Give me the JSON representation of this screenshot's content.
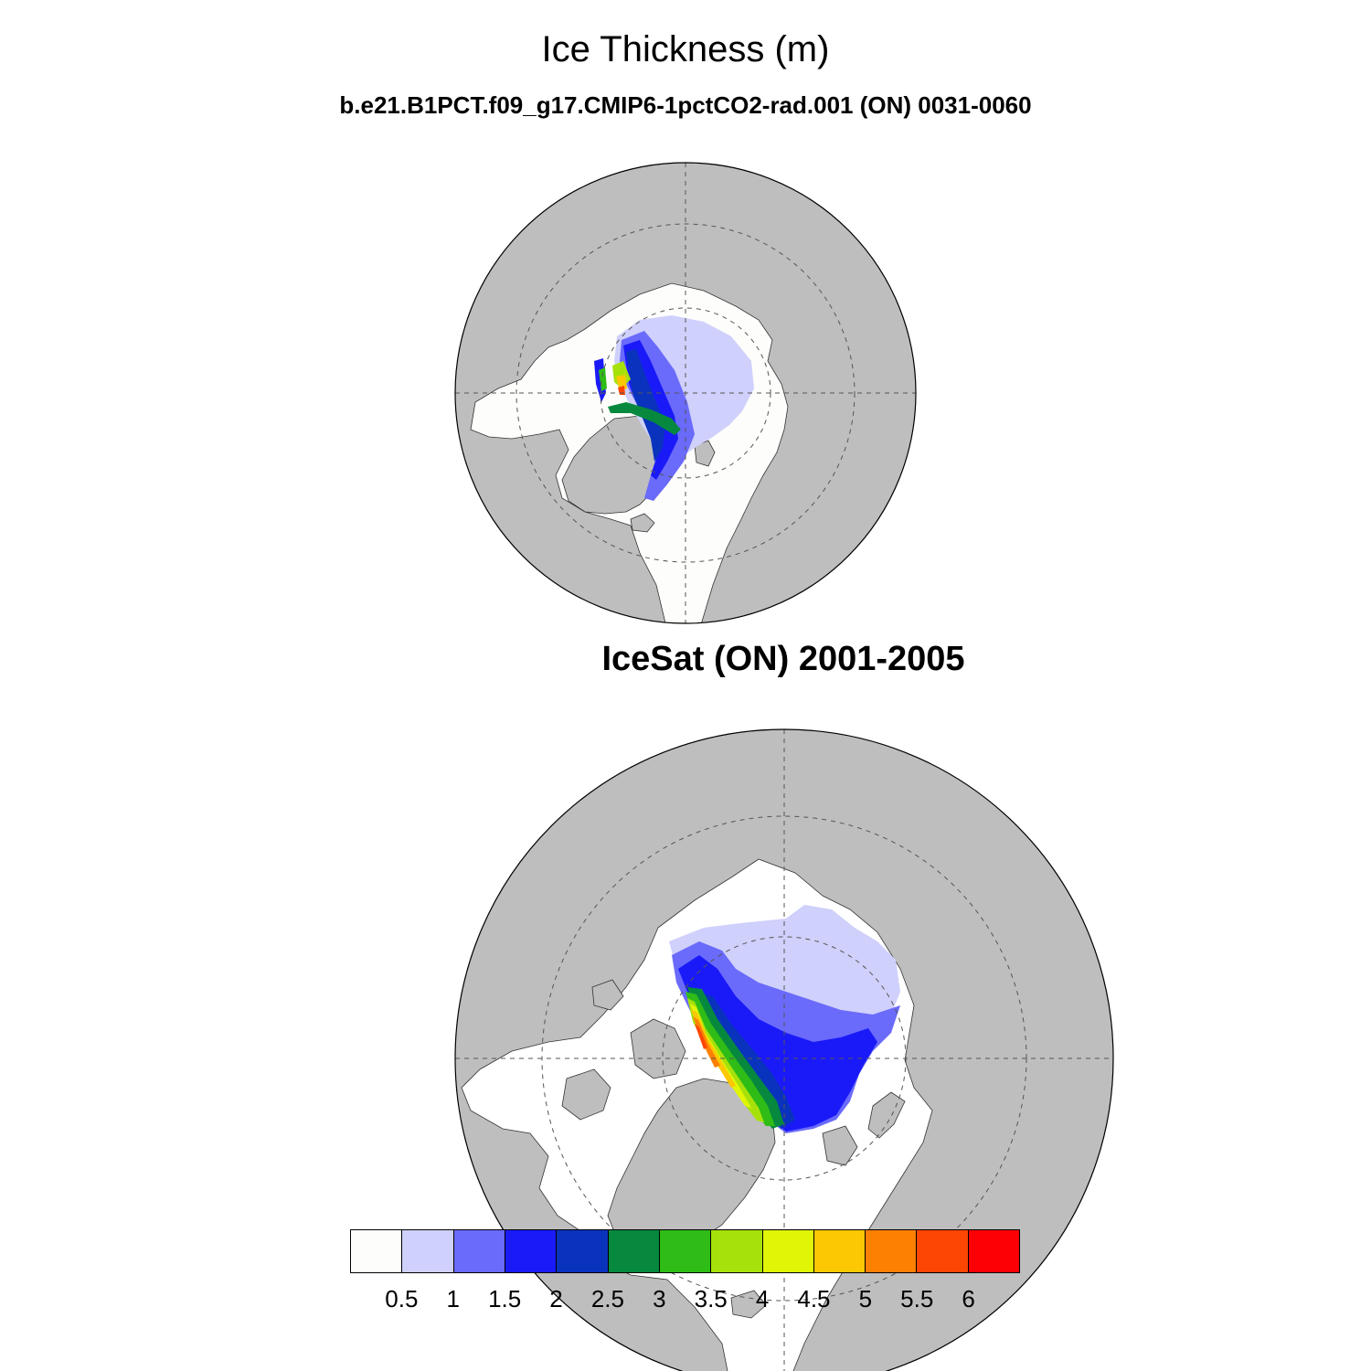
{
  "header": {
    "title": "Ice Thickness (m)",
    "subtitle": "b.e21.B1PCT.f09_g17.CMIP6-1pctCO2-rad.001 (ON) 0031-0060"
  },
  "panels": [
    {
      "id": "model",
      "title": ""
    },
    {
      "id": "obs",
      "title": "IceSat (ON) 2001-2005"
    }
  ],
  "colors": {
    "land": "#bebebe",
    "ocean": "#fdfdfb",
    "grid": "#555555"
  },
  "colorbar": {
    "colors": [
      "#fdfdfb",
      "#cfd0fb",
      "#6a6afb",
      "#1a1af8",
      "#0a33bd",
      "#06893e",
      "#2fbc17",
      "#a7e10b",
      "#e1f507",
      "#fcc703",
      "#fd8003",
      "#fd4603",
      "#fd0005"
    ],
    "labels": [
      "0.5",
      "1",
      "1.5",
      "2",
      "2.5",
      "3",
      "3.5",
      "4",
      "4.5",
      "5",
      "5.5",
      "6"
    ],
    "units": "m"
  }
}
